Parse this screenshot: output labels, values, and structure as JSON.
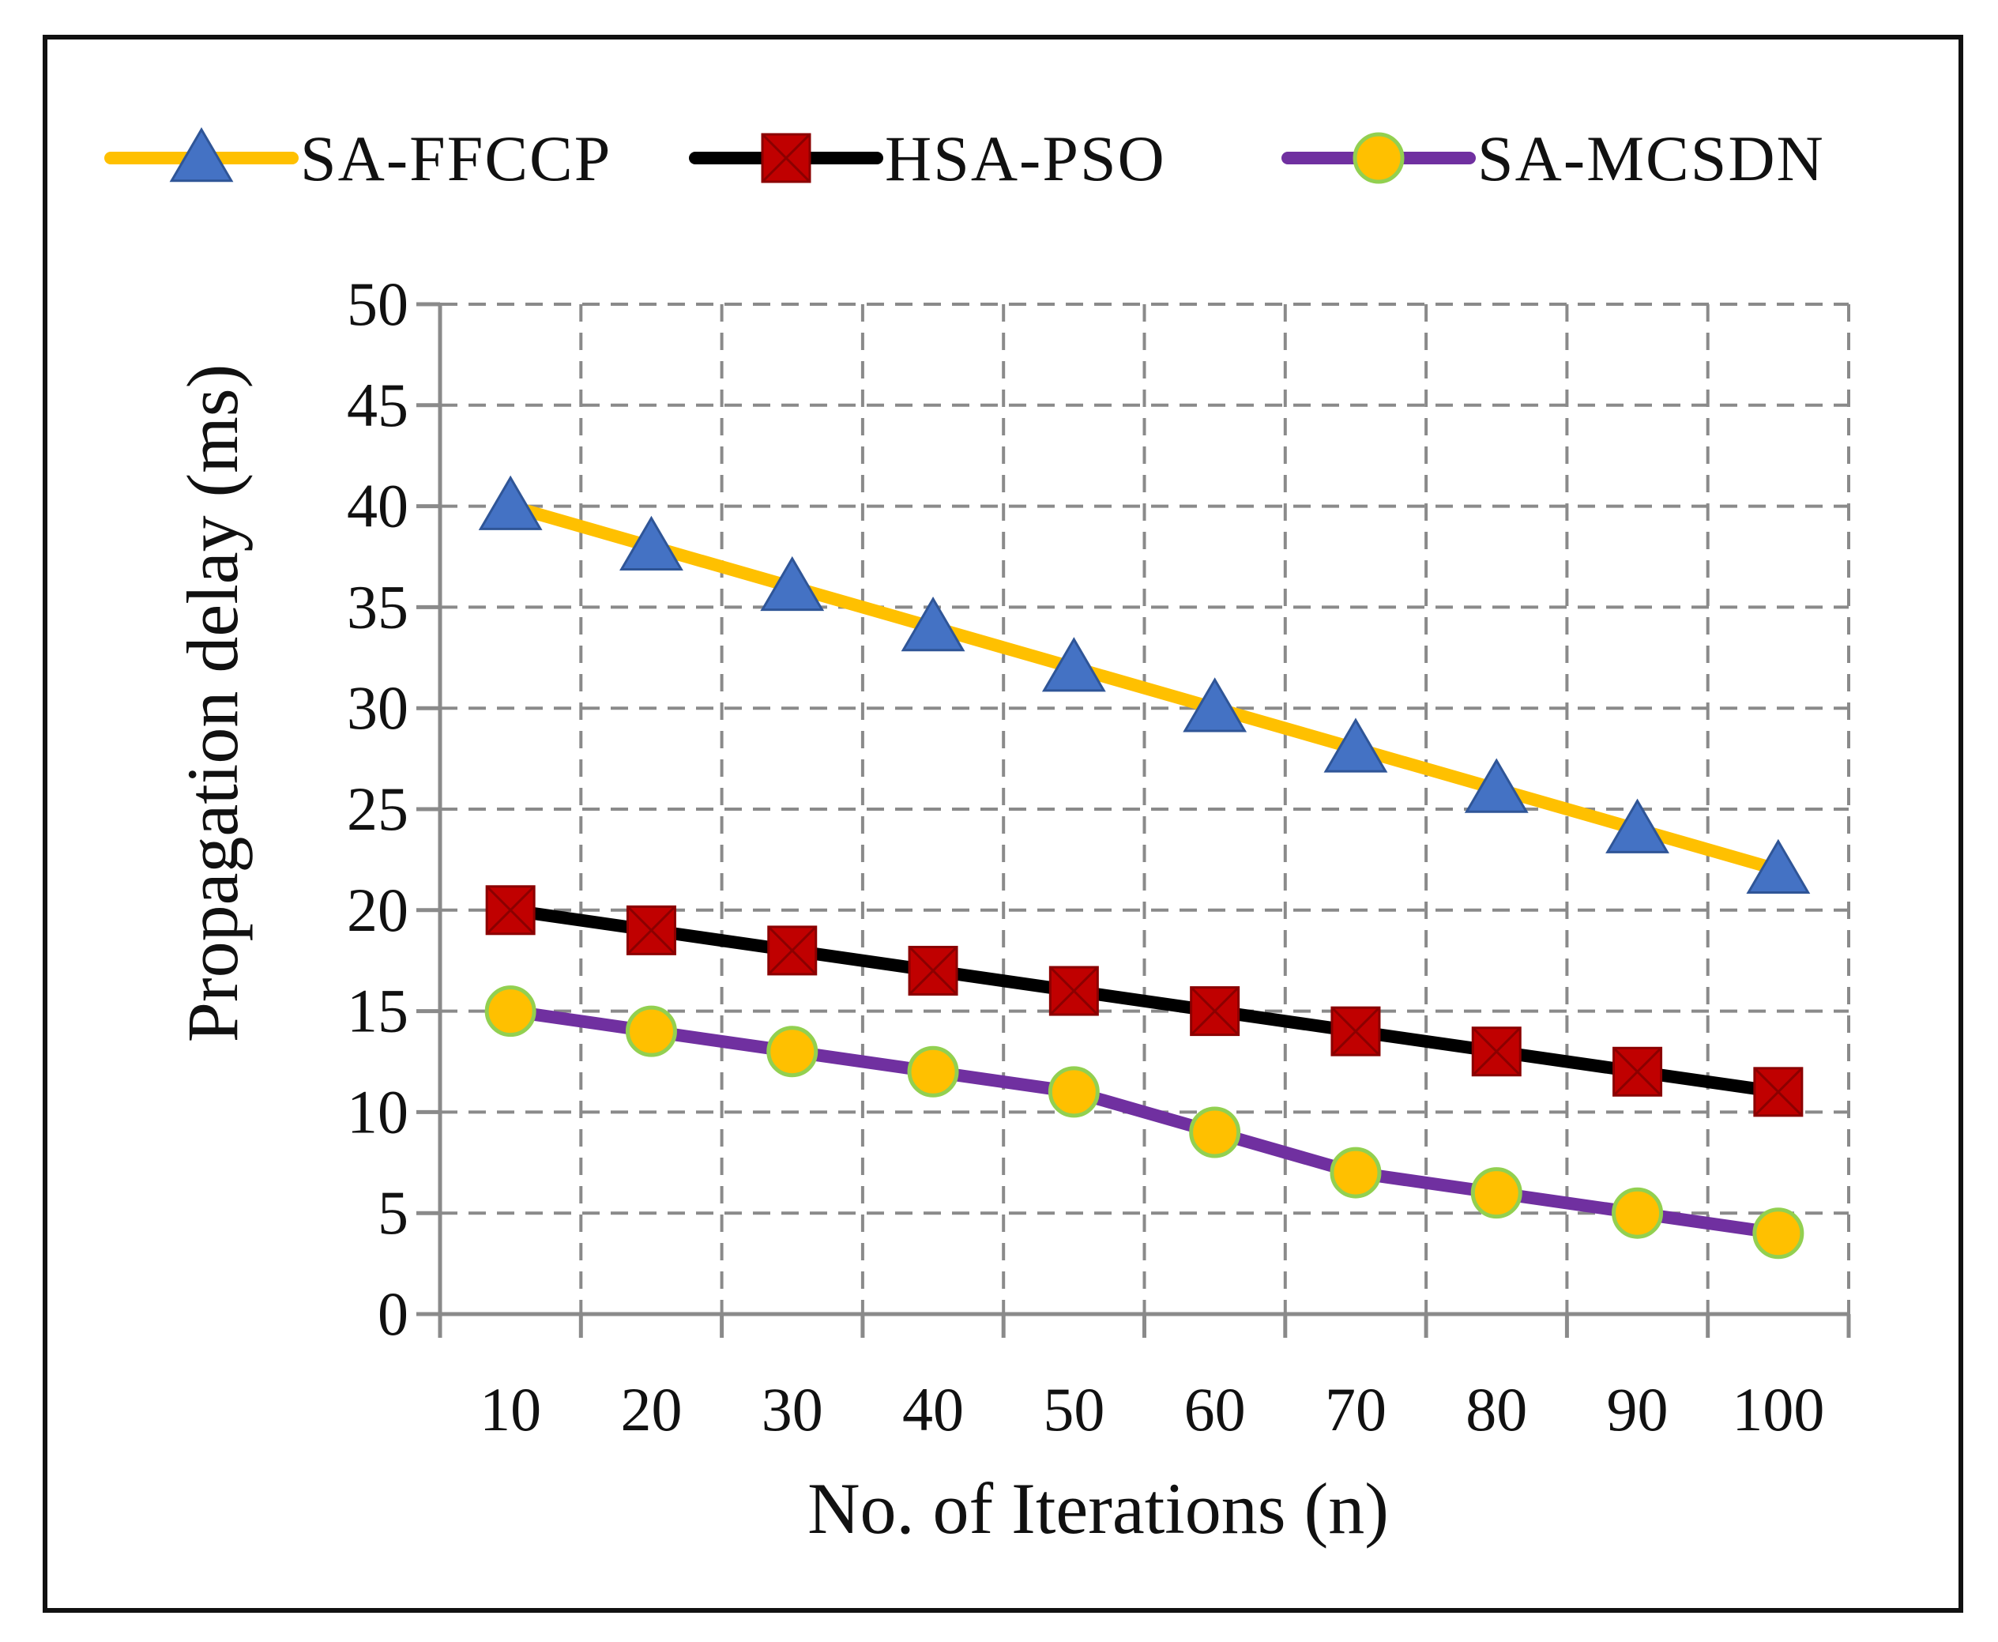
{
  "chart_data": {
    "type": "line",
    "title": "",
    "xlabel": "No. of Iterations (n)",
    "ylabel": "Propagation delay (ms)",
    "categories": [
      "10",
      "20",
      "30",
      "40",
      "50",
      "60",
      "70",
      "80",
      "90",
      "100"
    ],
    "ylim": [
      0,
      50
    ],
    "yticks": [
      "0",
      "5",
      "10",
      "15",
      "20",
      "25",
      "30",
      "35",
      "40",
      "45",
      "50"
    ],
    "grid": true,
    "legend_position": "top",
    "series": [
      {
        "name": "SA-FFCCP",
        "values": [
          40,
          38,
          36,
          34,
          32,
          30,
          28,
          26,
          24,
          22
        ],
        "line_color": "#FFC000",
        "marker": "triangle",
        "marker_color": "#4472C4"
      },
      {
        "name": "HSA-PSO",
        "values": [
          20,
          19,
          18,
          17,
          16,
          15,
          14,
          13,
          12,
          11
        ],
        "line_color": "#000000",
        "marker": "square-x",
        "marker_color": "#C00000"
      },
      {
        "name": "SA-MCSDN",
        "values": [
          15,
          14,
          13,
          12,
          11,
          9,
          7,
          6,
          5,
          4
        ],
        "line_color": "#7030A0",
        "marker": "circle",
        "marker_color": "#FFC000"
      }
    ]
  }
}
